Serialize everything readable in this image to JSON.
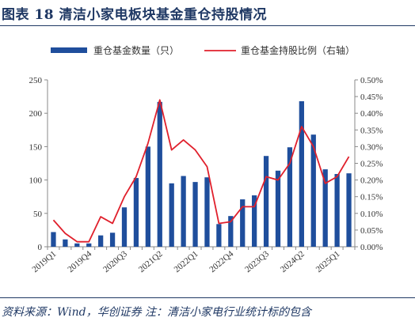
{
  "header": {
    "title": "图表 18   清洁小家电板块基金重仓持股情况"
  },
  "footer": {
    "source": "资料来源：Wind，华创证券  注：清洁小家电行业统计标的包含"
  },
  "colors": {
    "bar": "#1f4e9c",
    "line": "#e0202c",
    "title": "#1f3864",
    "axis": "#888888"
  },
  "chart_data": {
    "type": "bar",
    "categories": [
      "2019Q1",
      "2019Q2",
      "2019Q3",
      "2019Q4",
      "2020Q1",
      "2020Q2",
      "2020Q3",
      "2020Q4",
      "2021Q1",
      "2021Q2",
      "2021Q3",
      "2021Q4",
      "2022Q1",
      "2022Q2",
      "2022Q3",
      "2022Q4",
      "2023Q1",
      "2023Q2",
      "2023Q3",
      "2023Q4",
      "2024Q1",
      "2024Q2",
      "2024Q3",
      "2024Q4",
      "2025Q1",
      "2025Q2"
    ],
    "x_tick_labels": [
      "2019Q1",
      "2019Q4",
      "2020Q3",
      "2021Q2",
      "2022Q1",
      "2022Q4",
      "2023Q3",
      "2024Q2",
      "2025Q1"
    ],
    "series": [
      {
        "name": "重仓基金数量（只）",
        "type": "bar",
        "axis": "left",
        "values": [
          22,
          11,
          5,
          5,
          17,
          21,
          59,
          103,
          150,
          217,
          95,
          106,
          97,
          104,
          34,
          46,
          71,
          77,
          136,
          114,
          149,
          218,
          168,
          116,
          109,
          110
        ]
      },
      {
        "name": "重仓基金持股比例（右轴）",
        "type": "line",
        "axis": "right",
        "values": [
          0.0008,
          0.0004,
          0.00015,
          0.00015,
          0.0009,
          0.0007,
          0.0015,
          0.0021,
          0.0031,
          0.0044,
          0.0029,
          0.0032,
          0.0029,
          0.0024,
          0.0007,
          0.00075,
          0.0012,
          0.0012,
          0.0021,
          0.002,
          0.0025,
          0.0036,
          0.003,
          0.0019,
          0.0021,
          0.0027
        ]
      }
    ],
    "y_left": {
      "min": 0,
      "max": 250,
      "ticks": [
        "0",
        "50",
        "100",
        "150",
        "200",
        "250"
      ]
    },
    "y_right": {
      "min": 0,
      "max": 0.005,
      "ticks": [
        "0.00%",
        "0.05%",
        "0.10%",
        "0.15%",
        "0.20%",
        "0.25%",
        "0.30%",
        "0.35%",
        "0.40%",
        "0.45%",
        "0.50%"
      ]
    },
    "legend": [
      "重仓基金数量（只）",
      "重仓基金持股比例（右轴）"
    ],
    "legend_position": "top",
    "grid": false
  }
}
